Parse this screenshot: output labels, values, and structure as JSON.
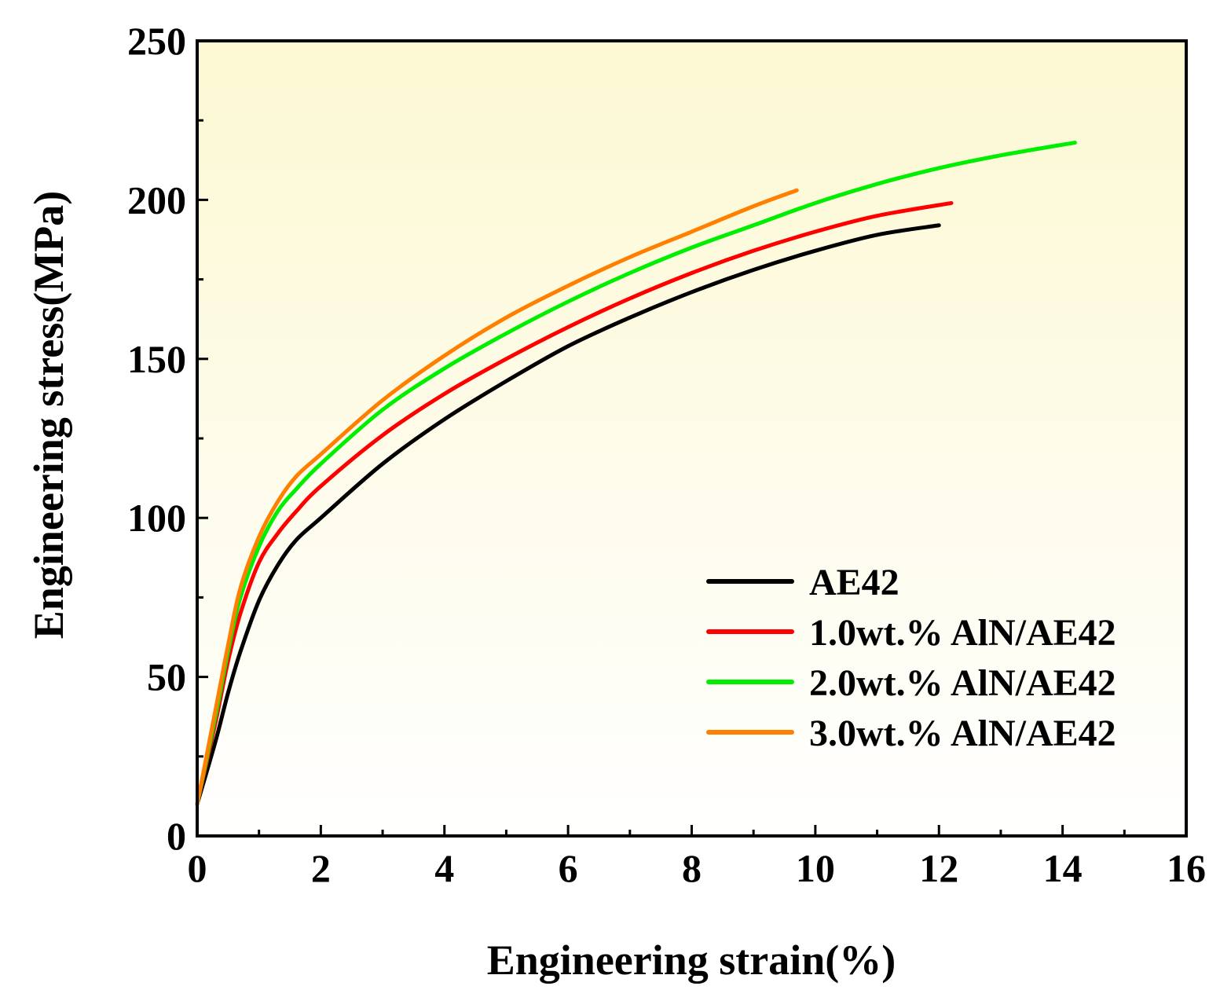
{
  "chart_data": {
    "type": "line",
    "title": "",
    "xlabel": "Engineering strain(%)",
    "ylabel": "Engineering stress(MPa)",
    "xlim": [
      0,
      16
    ],
    "ylim": [
      0,
      250
    ],
    "xticks": [
      0,
      2,
      4,
      6,
      8,
      10,
      12,
      14,
      16
    ],
    "yticks": [
      0,
      50,
      100,
      150,
      200,
      250
    ],
    "xtick_labels": [
      "0",
      "2",
      "4",
      "6",
      "8",
      "10",
      "12",
      "14",
      "16"
    ],
    "ytick_labels": [
      "0",
      "50",
      "100",
      "150",
      "200",
      "250"
    ],
    "grid": false,
    "legend_position": "bottom-right",
    "background_gradient": [
      "#fcf8d2",
      "#ffffff"
    ],
    "series": [
      {
        "name": "AE42",
        "color": "#000000",
        "x": [
          0,
          0.3,
          0.5,
          0.7,
          1.0,
          1.3,
          1.6,
          2.0,
          3.0,
          4.0,
          5.0,
          6.0,
          7.0,
          8.0,
          9.0,
          10.0,
          11.0,
          12.0
        ],
        "y": [
          10,
          30,
          45,
          58,
          74,
          85,
          93,
          100,
          117,
          131,
          143,
          154,
          163,
          171,
          178,
          184,
          189,
          192
        ]
      },
      {
        "name": "1.0wt.% AlN/AE42",
        "color": "#ff0000",
        "x": [
          0,
          0.3,
          0.5,
          0.7,
          1.0,
          1.3,
          1.6,
          2.0,
          3.0,
          4.0,
          5.0,
          6.0,
          7.0,
          8.0,
          9.0,
          10.0,
          11.0,
          12.2
        ],
        "y": [
          10,
          36,
          55,
          70,
          86,
          95,
          102,
          110,
          126,
          139,
          150,
          160,
          169,
          177,
          184,
          190,
          195,
          199
        ]
      },
      {
        "name": "2.0wt.% AlN/AE42",
        "color": "#00ee00",
        "x": [
          0,
          0.3,
          0.5,
          0.7,
          1.0,
          1.3,
          1.6,
          2.0,
          3.0,
          4.0,
          5.0,
          6.0,
          7.0,
          8.0,
          9.0,
          10.0,
          11.0,
          12.0,
          13.0,
          14.2
        ],
        "y": [
          10,
          38,
          58,
          75,
          91,
          102,
          109,
          117,
          134,
          147,
          158,
          168,
          177,
          185,
          192,
          199,
          205,
          210,
          214,
          218
        ]
      },
      {
        "name": "3.0wt.% AlN/AE42",
        "color": "#ff8000",
        "x": [
          0,
          0.3,
          0.5,
          0.7,
          1.0,
          1.3,
          1.6,
          2.0,
          3.0,
          4.0,
          5.0,
          6.0,
          7.0,
          8.0,
          9.0,
          9.7
        ],
        "y": [
          10,
          40,
          60,
          78,
          94,
          105,
          113,
          120,
          137,
          151,
          163,
          173,
          182,
          190,
          198,
          203
        ]
      }
    ]
  }
}
